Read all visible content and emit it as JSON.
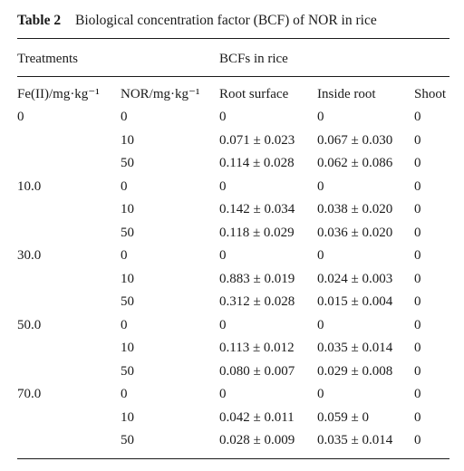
{
  "caption": {
    "label": "Table 2",
    "title": "Biological concentration factor (BCF) of NOR in rice"
  },
  "header_groups": {
    "treatments": "Treatments",
    "bcfs": "BCFs in rice"
  },
  "columns": [
    "Fe(II)/mg·kg⁻¹",
    "NOR/mg·kg⁻¹",
    "Root surface",
    "Inside root",
    "Shoot"
  ],
  "rows": [
    [
      "0",
      "0",
      "0",
      "0",
      "0"
    ],
    [
      "",
      "10",
      "0.071 ± 0.023",
      "0.067 ± 0.030",
      "0"
    ],
    [
      "",
      "50",
      "0.114 ± 0.028",
      "0.062 ± 0.086",
      "0"
    ],
    [
      "10.0",
      "0",
      "0",
      "0",
      "0"
    ],
    [
      "",
      "10",
      "0.142 ± 0.034",
      "0.038 ± 0.020",
      "0"
    ],
    [
      "",
      "50",
      "0.118 ± 0.029",
      "0.036 ± 0.020",
      "0"
    ],
    [
      "30.0",
      "0",
      "0",
      "0",
      "0"
    ],
    [
      "",
      "10",
      "0.883 ± 0.019",
      "0.024 ± 0.003",
      "0"
    ],
    [
      "",
      "50",
      "0.312 ± 0.028",
      "0.015 ± 0.004",
      "0"
    ],
    [
      "50.0",
      "0",
      "0",
      "0",
      "0"
    ],
    [
      "",
      "10",
      "0.113 ± 0.012",
      "0.035 ± 0.014",
      "0"
    ],
    [
      "",
      "50",
      "0.080 ± 0.007",
      "0.029 ± 0.008",
      "0"
    ],
    [
      "70.0",
      "0",
      "0",
      "0",
      "0"
    ],
    [
      "",
      "10",
      "0.042 ± 0.011",
      "0.059 ± 0",
      "0"
    ],
    [
      "",
      "50",
      "0.028 ± 0.009",
      "0.035 ± 0.014",
      "0"
    ]
  ]
}
